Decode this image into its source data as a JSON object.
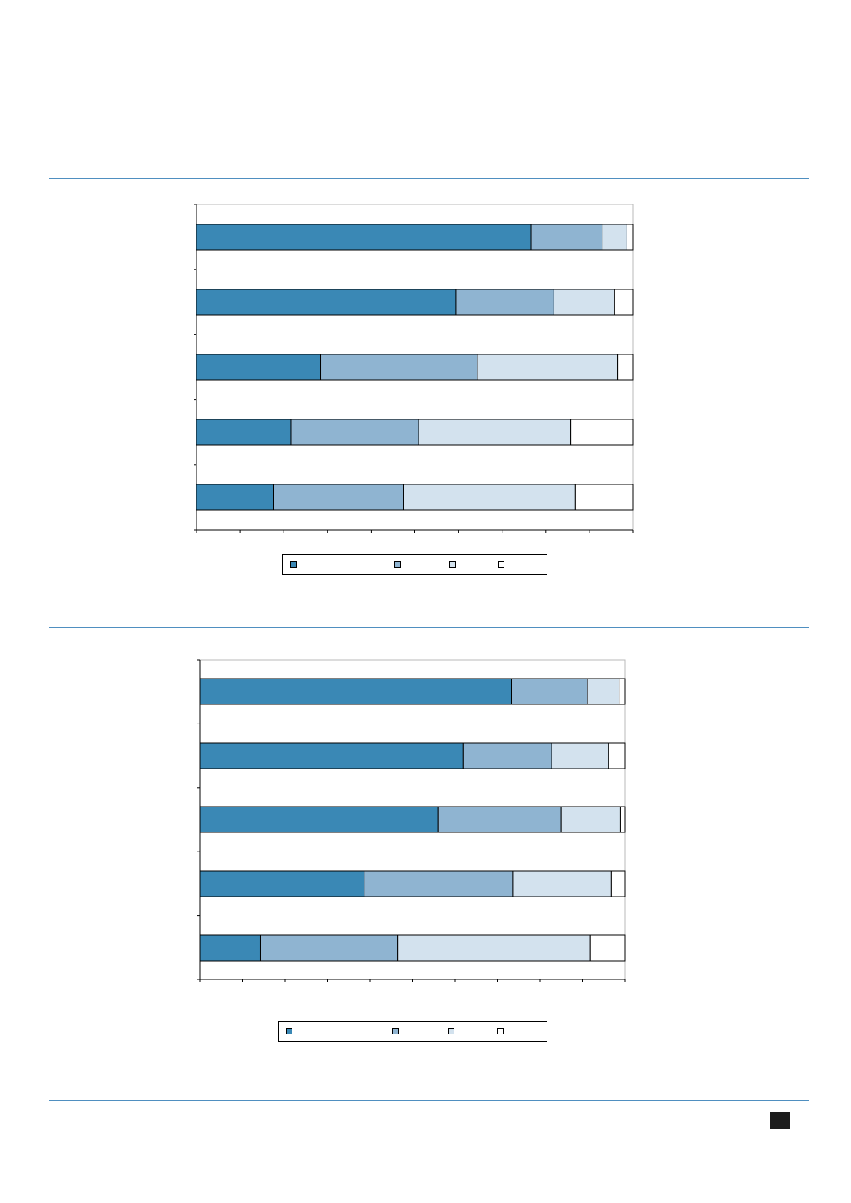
{
  "colors": {
    "rule": "#4f8fc0",
    "series": [
      "#3a88b5",
      "#8fb4d1",
      "#d3e2ee",
      "#ffffff"
    ]
  },
  "chart_data": [
    {
      "type": "bar",
      "orientation": "horizontal",
      "stacked": true,
      "xlim": [
        0,
        100
      ],
      "grid": false,
      "legend": "bottom",
      "categories": [
        "",
        "",
        "",
        "",
        ""
      ],
      "series": [
        {
          "values": [
            76.6,
            59.4,
            28.4,
            21.6,
            17.6
          ]
        },
        {
          "values": [
            16.3,
            22.5,
            35.9,
            29.3,
            29.8
          ]
        },
        {
          "values": [
            5.7,
            13.9,
            32.2,
            34.8,
            39.4
          ]
        },
        {
          "values": [
            1.4,
            4.2,
            3.5,
            14.3,
            13.2
          ]
        }
      ]
    },
    {
      "type": "bar",
      "orientation": "horizontal",
      "stacked": true,
      "xlim": [
        0,
        100
      ],
      "grid": false,
      "legend": "bottom",
      "categories": [
        "",
        "",
        "",
        "",
        ""
      ],
      "series": [
        {
          "values": [
            73.2,
            61.9,
            56.0,
            38.6,
            14.2
          ]
        },
        {
          "values": [
            17.9,
            20.8,
            28.9,
            35.0,
            32.3
          ]
        },
        {
          "values": [
            7.5,
            13.4,
            14.0,
            23.1,
            45.3
          ]
        },
        {
          "values": [
            1.4,
            3.9,
            1.1,
            3.3,
            8.2
          ]
        }
      ]
    }
  ]
}
